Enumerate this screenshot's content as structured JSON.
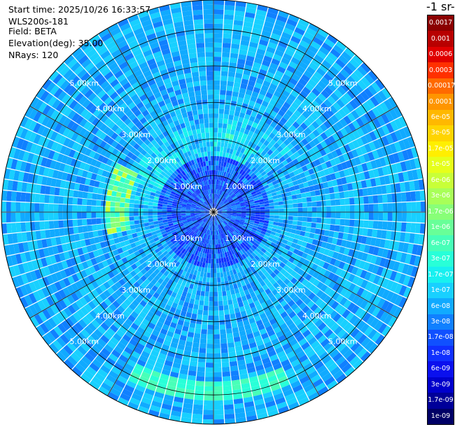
{
  "info": {
    "start_time_label": "Start time:",
    "start_time_value": "2025/10/26 16:33:57",
    "instrument": "WLS200s-181",
    "field_label": "Field:",
    "field_value": "BETA",
    "elevation_label": "Elevation(deg):",
    "elevation_value": "35.00",
    "nrays_label": "NRays:",
    "nrays_value": "120"
  },
  "colorbar": {
    "title": "-1 sr-",
    "ticks": [
      "0.0017",
      "0.001",
      "0.0006",
      "0.0003",
      "0.00017",
      "0.0001",
      "6e-05",
      "3e-05",
      "1.7e-05",
      "1e-05",
      "6e-06",
      "3e-06",
      "1.7e-06",
      "1e-06",
      "6e-07",
      "3e-07",
      "1.7e-07",
      "1e-07",
      "6e-08",
      "3e-08",
      "1.7e-08",
      "1e-08",
      "6e-09",
      "3e-09",
      "1.7e-09",
      "1e-09"
    ],
    "colors": [
      "#8b0000",
      "#b80000",
      "#e00000",
      "#ff3000",
      "#ff6a00",
      "#ff9500",
      "#ffb800",
      "#ffd400",
      "#ffef00",
      "#e6ff1a",
      "#c8ff38",
      "#a8ff58",
      "#88ff78",
      "#68ff98",
      "#48ffb8",
      "#28ffd8",
      "#18f0f0",
      "#18d0ff",
      "#10aaff",
      "#1080ff",
      "#1050ff",
      "#1030ff",
      "#0a10ee",
      "#0000cc",
      "#000099",
      "#000066"
    ]
  },
  "chart_data": {
    "type": "heatmap",
    "projection": "polar PPI",
    "field": "BETA",
    "nrays": 120,
    "range_rings_km": [
      1.0,
      2.0,
      3.0,
      4.0,
      5.0
    ],
    "ring_labels": [
      "1.00km",
      "2.00km",
      "3.00km",
      "4.00km",
      "5.00km"
    ],
    "max_range_km": 5.8,
    "color_scale": "log",
    "value_range": [
      1e-09,
      0.0017
    ],
    "grid": true,
    "colorbar_placement": "right"
  }
}
